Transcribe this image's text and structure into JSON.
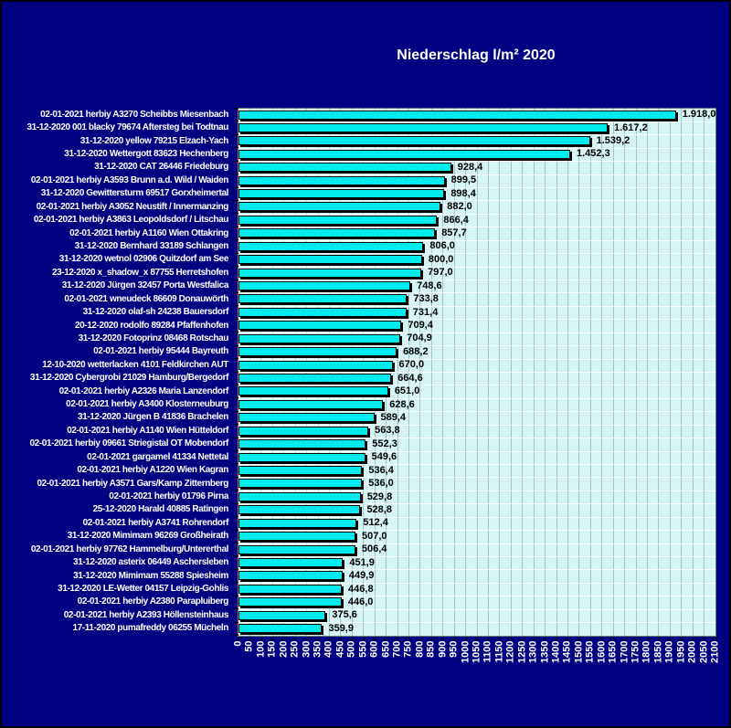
{
  "page": {
    "background_color": "#000080",
    "plot_background_color": "#d6f4f4",
    "bar_color": "#00ecec",
    "bar_border_color": "#000000",
    "gridline_color": "#a3c4c4",
    "title_color": "#ffffff",
    "label_color": "#ffffff",
    "value_label_color": "#000000"
  },
  "chart_data": {
    "type": "bar",
    "orientation": "horizontal",
    "title": "Niederschlag l/m² 2020",
    "xlabel": "",
    "ylabel": "",
    "xlim": [
      0,
      2100
    ],
    "x_tick_step": 50,
    "x_ticks": [
      0,
      50,
      100,
      150,
      200,
      250,
      300,
      350,
      400,
      450,
      500,
      550,
      600,
      650,
      700,
      750,
      800,
      850,
      900,
      950,
      1000,
      1050,
      1100,
      1150,
      1200,
      1250,
      1300,
      1350,
      1400,
      1450,
      1500,
      1550,
      1600,
      1650,
      1700,
      1750,
      1800,
      1850,
      1900,
      1950,
      2000,
      2050,
      2100
    ],
    "grid": true,
    "legend": false,
    "categories": [
      "02-01-2021 herbiy A3270 Scheibbs Miesenbach",
      "31-12-2020 001 blacky 79674 Aftersteg bei Todtnau",
      "31-12-2020 yellow 79215 Elzach-Yach",
      "31-12-2020 Wettergott 83623 Hechenberg",
      "31-12-2020 CAT 26446 Friedeburg",
      "02-01-2021 herbiy A3593 Brunn a.d. Wild / Waiden",
      "31-12-2020 Gewittersturm 69517 Gorxheimertal",
      "02-01-2021 herbiy A3052 Neustift / Innermanzing",
      "02-01-2021 herbiy A3863 Leopoldsdorf / Litschau",
      "02-01-2021 herbiy A1160 Wien Ottakring",
      "31-12-2020 Bernhard 33189 Schlangen",
      "31-12-2020 wetnol 02906 Quitzdorf am See",
      "23-12-2020 x_shadow_x 87755 Herretshofen",
      "31-12-2020 Jürgen 32457 Porta Westfalica",
      "02-01-2021 wneudeck 86609 Donauwörth",
      "31-12-2020 olaf-sh 24238 Bauersdorf",
      "20-12-2020 rodolfo 89284 Pfaffenhofen",
      "31-12-2020 Fotoprinz 08468 Rotschau",
      "02-01-2021 herbiy 95444 Bayreuth",
      "12-10-2020 wetterlacken 4101 Feldkirchen AUT",
      "31-12-2020 Cybergrobi 21029 Hamburg/Bergedorf",
      "02-01-2021 herbiy A2326 Maria Lanzendorf",
      "02-01-2021 herbiy A3400 Klosterneuburg",
      "31-12-2020 Jürgen B 41836 Brachelen",
      "02-01-2021 herbiy A1140 Wien Hütteldorf",
      "02-01-2021 herbiy 09661 Striegistal OT Mobendorf",
      "02-01-2021 gargamel 41334 Nettetal",
      "02-01-2021 herbiy A1220 Wien Kagran",
      "02-01-2021 herbiy A3571 Gars/Kamp Zitternberg",
      "02-01-2021 herbiy 01796 Pirna",
      "25-12-2020 Harald 40885 Ratingen",
      "02-01-2021 herbiy A3741 Rohrendorf",
      "31-12-2020 Mimimam 96269 Großheirath",
      "02-01-2021 herbiy 97762 Hammelburg/Untererthal",
      "31-12-2020 asterix 06449 Aschersleben",
      "31-12-2020 Mimimam 55288 Spiesheim",
      "31-12-2020 LE-Wetter 04157 Leipzig-Gohlis",
      "02-01-2021 herbiy A2380 Parapluiberg",
      "02-01-2021 herbiy A2393 Höllensteinhaus",
      "17-11-2020 pumafreddy 06255 Mücheln"
    ],
    "values": [
      1918.0,
      1617.2,
      1539.2,
      1452.3,
      928.4,
      899.5,
      898.4,
      882.0,
      866.4,
      857.7,
      806.0,
      800.0,
      797.0,
      748.6,
      733.8,
      731.4,
      709.4,
      704.9,
      688.2,
      670.0,
      664.6,
      651.0,
      628.6,
      589.4,
      563.8,
      552.3,
      549.6,
      536.4,
      536.0,
      529.8,
      528.8,
      512.4,
      507.0,
      506.4,
      451.9,
      449.9,
      446.8,
      446.0,
      375.6,
      359.9
    ],
    "value_labels": [
      "1.918,0",
      "1.617,2",
      "1.539,2",
      "1.452,3",
      "928,4",
      "899,5",
      "898,4",
      "882,0",
      "866,4",
      "857,7",
      "806,0",
      "800,0",
      "797,0",
      "748,6",
      "733,8",
      "731,4",
      "709,4",
      "704,9",
      "688,2",
      "670,0",
      "664,6",
      "651,0",
      "628,6",
      "589,4",
      "563,8",
      "552,3",
      "549,6",
      "536,4",
      "536,0",
      "529,8",
      "528,8",
      "512,4",
      "507,0",
      "506,4",
      "451,9",
      "449,9",
      "446,8",
      "446,0",
      "375,6",
      "359,9"
    ]
  }
}
